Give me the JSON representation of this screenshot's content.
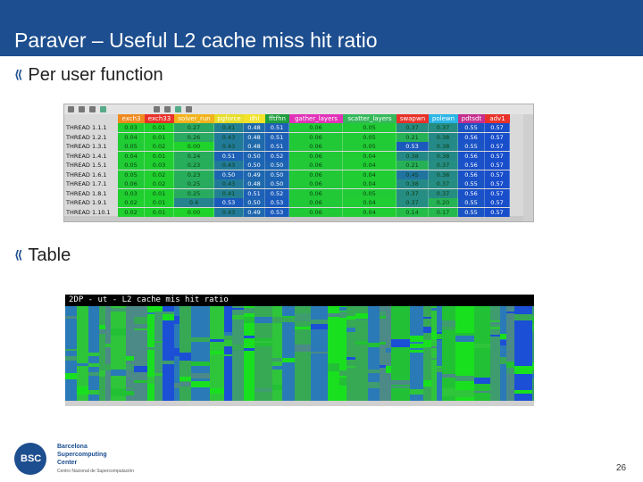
{
  "slide": {
    "title": "Paraver – Useful L2 cache miss hit ratio",
    "bullet1": "Per user function",
    "bullet2": "Table",
    "page_number": "26",
    "bullet_glyph": "⟪"
  },
  "table": {
    "columns": [
      {
        "label": "exch3",
        "color": "#f08a1e"
      },
      {
        "label": "exch33",
        "color": "#e8322a"
      },
      {
        "label": "solver_run",
        "color": "#f2b21b"
      },
      {
        "label": "pgforce",
        "color": "#e6de2a"
      },
      {
        "label": "dhl",
        "color": "#f2e22a"
      },
      {
        "label": "fftfhn",
        "color": "#1e9e3c"
      },
      {
        "label": "gather_layers",
        "color": "#e233b8"
      },
      {
        "label": "scatter_layers",
        "color": "#34b85a"
      },
      {
        "label": "swapwn",
        "color": "#e8322a"
      },
      {
        "label": "polewn",
        "color": "#2bb6e6"
      },
      {
        "label": "pdtsdt",
        "color": "#c62f8e"
      },
      {
        "label": "adv1",
        "color": "#e8322a"
      }
    ],
    "rows": [
      {
        "label": "THREAD 1.1.1",
        "values": [
          "0.03",
          "0.01",
          "0.27",
          "0.41",
          "0.48",
          "0.51",
          "0.06",
          "0.05",
          "0.37",
          "0.37",
          "0.55",
          "0.57"
        ]
      },
      {
        "label": "THREAD 1.2.1",
        "values": [
          "0.04",
          "0.01",
          "0.26",
          "0.43",
          "0.48",
          "0.51",
          "0.06",
          "0.05",
          "0.21",
          "0.38",
          "0.56",
          "0.57"
        ]
      },
      {
        "label": "THREAD 1.3.1",
        "values": [
          "0.05",
          "0.02",
          "0.00",
          "0.43",
          "0.48",
          "0.51",
          "0.06",
          "0.05",
          "0.53",
          "0.38",
          "0.55",
          "0.57"
        ]
      },
      {
        "label": "THREAD 1.4.1",
        "values": [
          "0.04",
          "0.01",
          "0.24",
          "0.51",
          "0.50",
          "0.52",
          "0.06",
          "0.04",
          "0.38",
          "0.38",
          "0.56",
          "0.57"
        ]
      },
      {
        "label": "THREAD 1.5.1",
        "values": [
          "0.05",
          "0.03",
          "0.23",
          "0.43",
          "0.50",
          "0.50",
          "0.06",
          "0.04",
          "0.21",
          "0.37",
          "0.56",
          "0.57"
        ]
      },
      {
        "label": "THREAD 1.6.1",
        "values": [
          "0.05",
          "0.02",
          "0.23",
          "0.50",
          "0.49",
          "0.50",
          "0.06",
          "0.04",
          "0.45",
          "0.38",
          "0.56",
          "0.57"
        ]
      },
      {
        "label": "THREAD 1.7.1",
        "values": [
          "0.06",
          "0.02",
          "0.25",
          "0.43",
          "0.48",
          "0.50",
          "0.06",
          "0.04",
          "0.38",
          "0.37",
          "0.55",
          "0.57"
        ]
      },
      {
        "label": "THREAD 1.8.1",
        "values": [
          "0.03",
          "0.01",
          "0.25",
          "0.41",
          "0.51",
          "0.52",
          "0.06",
          "0.05",
          "0.37",
          "0.37",
          "0.56",
          "0.57"
        ]
      },
      {
        "label": "THREAD 1.9.1",
        "values": [
          "0.02",
          "0.01",
          "0.4",
          "0.53",
          "0.50",
          "0.53",
          "0.06",
          "0.04",
          "0.37",
          "0.20",
          "0.55",
          "0.57"
        ]
      },
      {
        "label": "THREAD 1.10.1",
        "values": [
          "0.02",
          "0.01",
          "0.00",
          "0.43",
          "0.49",
          "0.53",
          "0.06",
          "0.04",
          "0.14",
          "0.17",
          "0.55",
          "0.57"
        ]
      }
    ]
  },
  "timeline": {
    "title": "2DP - ut - L2 cache mis hit ratio"
  },
  "logo": {
    "mark": "BSC",
    "line1": "Barcelona",
    "line2": "Supercomputing",
    "line3": "Center",
    "line4": "Centro Nacional de Supercomputación"
  },
  "colors": {
    "title_bar": "#1d4e8f",
    "gradient_low": "#1fd32a",
    "gradient_mid": "#2aa36a",
    "gradient_high": "#1744d6"
  }
}
